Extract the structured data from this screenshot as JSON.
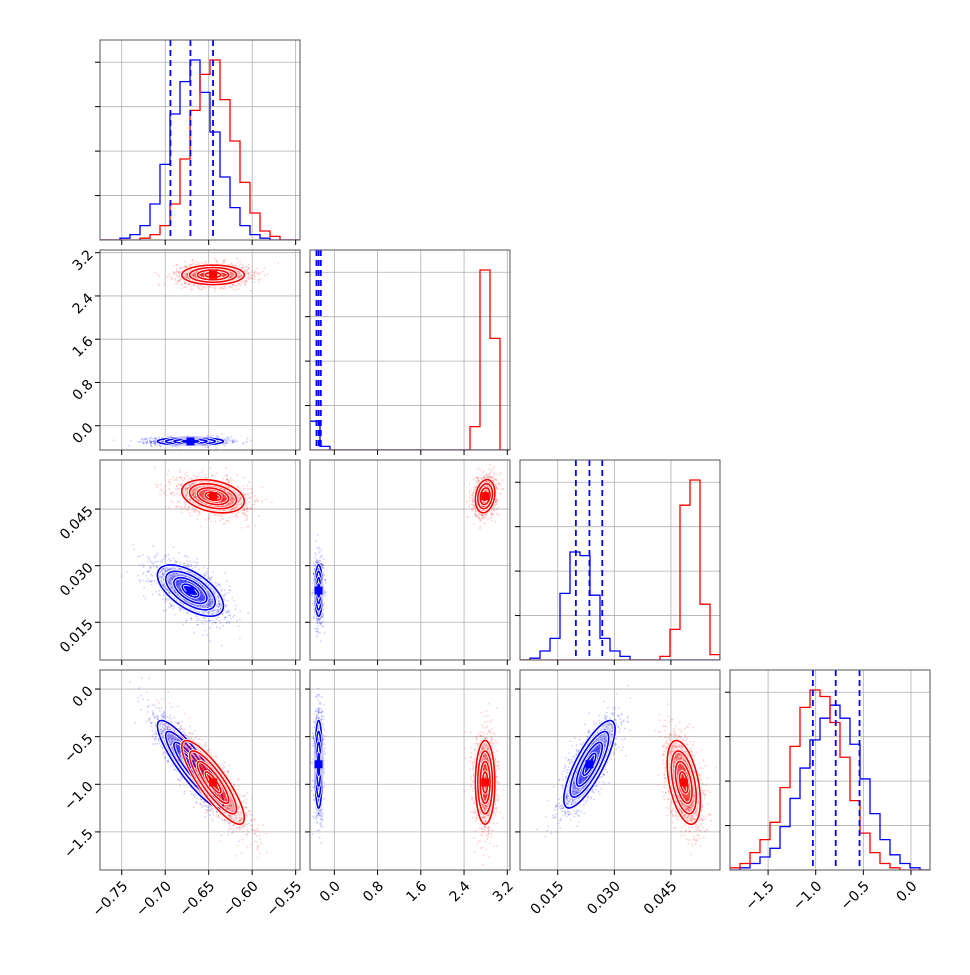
{
  "chart_data": {
    "type": "corner",
    "colors": {
      "series_a": "#0000ff",
      "series_b": "#ff0000",
      "frame": "#000000",
      "grid": "#b0b0b0"
    },
    "grid": true,
    "params": [
      {
        "key": "p1",
        "range": [
          -0.775,
          -0.545
        ],
        "ticks": [
          "-0.75",
          "-0.70",
          "-0.65",
          "-0.60",
          "-0.55"
        ],
        "tick_values": [
          -0.75,
          -0.7,
          -0.65,
          -0.6,
          -0.55
        ],
        "quantiles_a": [
          -0.694,
          -0.671,
          -0.645
        ],
        "mean_a": -0.671,
        "sd_a": 0.019,
        "mean_b": -0.645,
        "sd_b": 0.018
      },
      {
        "key": "p2",
        "range": [
          -0.45,
          3.25
        ],
        "ticks": [
          "0.0",
          "0.8",
          "1.6",
          "2.4",
          "3.2"
        ],
        "tick_values": [
          0.0,
          0.8,
          1.6,
          2.4,
          3.2
        ],
        "quantiles_a": [
          -0.33,
          -0.29,
          -0.25
        ],
        "mean_a": -0.29,
        "sd_a": 0.035,
        "mean_b": 2.79,
        "sd_b": 0.09
      },
      {
        "key": "p3",
        "range": [
          0.005,
          0.058
        ],
        "ticks": [
          "0.015",
          "0.030",
          "0.045"
        ],
        "tick_values": [
          0.015,
          0.03,
          0.045
        ],
        "quantiles_a": [
          0.0198,
          0.0234,
          0.0268
        ],
        "mean_a": 0.0234,
        "sd_a": 0.0034,
        "mean_b": 0.0484,
        "sd_b": 0.0022
      },
      {
        "key": "p4",
        "range": [
          -1.9,
          0.2
        ],
        "ticks": [
          "-1.5",
          "-1.0",
          "-0.5",
          "0.0"
        ],
        "tick_values": [
          -1.5,
          -1.0,
          -0.5,
          0.0
        ],
        "quantiles_a": [
          -1.03,
          -0.79,
          -0.54
        ],
        "mean_a": -0.79,
        "sd_a": 0.23,
        "mean_b": -0.98,
        "sd_b": 0.22
      }
    ],
    "histograms": [
      {
        "param": "p1",
        "edges": [
          -0.775,
          -0.7635,
          -0.752,
          -0.7405,
          -0.729,
          -0.7175,
          -0.706,
          -0.6945,
          -0.683,
          -0.6715,
          -0.66,
          -0.6485,
          -0.637,
          -0.6255,
          -0.614,
          -0.6025,
          -0.591,
          -0.5795,
          -0.568,
          -0.5565,
          -0.545
        ],
        "a": [
          0,
          0,
          1,
          3,
          8,
          20,
          42,
          70,
          88,
          100,
          82,
          60,
          35,
          18,
          8,
          3,
          1,
          0,
          0,
          0
        ],
        "b": [
          0,
          0,
          0,
          0,
          1,
          3,
          8,
          20,
          45,
          72,
          92,
          100,
          78,
          55,
          32,
          15,
          5,
          2,
          0,
          0
        ]
      },
      {
        "param": "p2",
        "edges": [
          -0.45,
          -0.265,
          -0.08,
          0.105,
          0.29,
          0.475,
          0.66,
          0.845,
          1.03,
          1.215,
          1.4,
          1.585,
          1.77,
          1.955,
          2.14,
          2.325,
          2.51,
          2.695,
          2.88,
          3.065,
          3.25
        ],
        "a": [
          16,
          2,
          0,
          0,
          0,
          0,
          0,
          0,
          0,
          0,
          0,
          0,
          0,
          0,
          0,
          0,
          0,
          0,
          0,
          0
        ],
        "b": [
          0,
          0,
          0,
          0,
          0,
          0,
          0,
          0,
          0,
          0,
          0,
          0,
          0,
          0,
          0,
          0,
          13,
          100,
          62,
          0
        ]
      },
      {
        "param": "p3",
        "edges": [
          0.005,
          0.00765,
          0.0103,
          0.01295,
          0.0156,
          0.01825,
          0.0209,
          0.02355,
          0.0262,
          0.02885,
          0.0315,
          0.03415,
          0.0368,
          0.03945,
          0.0421,
          0.04475,
          0.0474,
          0.05005,
          0.0527,
          0.05535,
          0.058
        ],
        "a": [
          0,
          1,
          5,
          12,
          37,
          60,
          58,
          36,
          12,
          5,
          2,
          0,
          0,
          0,
          0,
          0,
          0,
          0,
          0,
          0
        ],
        "b": [
          0,
          0,
          0,
          0,
          0,
          0,
          0,
          0,
          0,
          0,
          0,
          0,
          0,
          0,
          2,
          17,
          86,
          100,
          31,
          3
        ]
      },
      {
        "param": "p4",
        "edges": [
          -1.9,
          -1.795,
          -1.69,
          -1.585,
          -1.48,
          -1.375,
          -1.27,
          -1.165,
          -1.06,
          -0.955,
          -0.85,
          -0.745,
          -0.64,
          -0.535,
          -0.43,
          -0.325,
          -0.22,
          -0.115,
          -0.01,
          0.095,
          0.2
        ],
        "a": [
          0,
          1,
          3,
          6,
          10,
          20,
          33,
          47,
          60,
          70,
          76,
          70,
          58,
          42,
          26,
          14,
          7,
          3,
          1,
          0
        ],
        "b": [
          1,
          3,
          8,
          14,
          22,
          38,
          57,
          75,
          83,
          80,
          68,
          52,
          32,
          17,
          8,
          3,
          1,
          0,
          0,
          0
        ]
      }
    ],
    "pairs": [
      {
        "x": "p1",
        "y": "p2",
        "rho_a": 0.0,
        "rho_b": 0.0
      },
      {
        "x": "p1",
        "y": "p3",
        "rho_a": -0.6,
        "rho_b": -0.3
      },
      {
        "x": "p2",
        "y": "p3",
        "rho_a": 0.0,
        "rho_b": 0.2
      },
      {
        "x": "p1",
        "y": "p4",
        "rho_a": -0.88,
        "rho_b": -0.85
      },
      {
        "x": "p2",
        "y": "p4",
        "rho_a": 0.0,
        "rho_b": 0.0
      },
      {
        "x": "p3",
        "y": "p4",
        "rho_a": 0.8,
        "rho_b": -0.45
      }
    ]
  }
}
